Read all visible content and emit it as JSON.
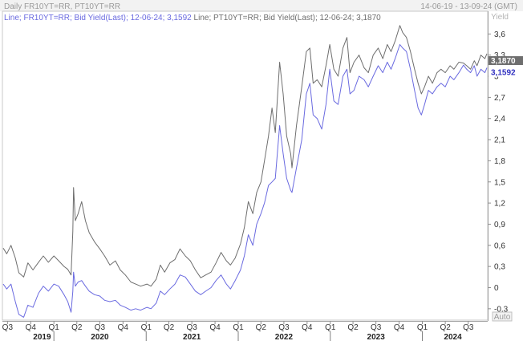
{
  "header": {
    "title": "Daily FR10YT=RR, PT10YT=RR",
    "date_range": "14-06-19 - 13-09-24 (GMT)"
  },
  "legend": {
    "entries": [
      {
        "text": "Line; FR10YT=RR; Bid Yield(Last); 12-06-24; 3,1592",
        "color": "#6a6ae0"
      },
      {
        "text": "Line; PT10YT=RR; Bid Yield(Last); 12-06-24; 3,1870",
        "color": "#6e6e6e"
      }
    ]
  },
  "y_axis_unit": "Yield",
  "auto_button": "Auto",
  "last_value_labels": [
    {
      "text": "3,1870",
      "value": 3.187,
      "background": "#6e6e6e",
      "color": "#ffffff"
    },
    {
      "text": "3,1592",
      "value": 3.1592,
      "background": "#ffffff",
      "color": "#3030c0"
    }
  ],
  "chart_data": {
    "type": "line",
    "x_range": [
      "2019-06-14",
      "2024-09-13"
    ],
    "ylim": [
      -0.45,
      3.9
    ],
    "y_ticks": [
      {
        "v": 3.6,
        "t": "3,6"
      },
      {
        "v": 3.3,
        "t": "3,3"
      },
      {
        "v": 3.0,
        "t": "3"
      },
      {
        "v": 2.7,
        "t": "2,7"
      },
      {
        "v": 2.4,
        "t": "2,4"
      },
      {
        "v": 2.1,
        "t": "2,1"
      },
      {
        "v": 1.8,
        "t": "1,8"
      },
      {
        "v": 1.5,
        "t": "1,5"
      },
      {
        "v": 1.2,
        "t": "1,2"
      },
      {
        "v": 0.9,
        "t": "0,9"
      },
      {
        "v": 0.6,
        "t": "0,6"
      },
      {
        "v": 0.3,
        "t": "0,3"
      },
      {
        "v": 0.0,
        "t": "0"
      },
      {
        "v": -0.3,
        "t": "-0,3"
      }
    ],
    "x_ticks": [
      {
        "d": "2019-07-01",
        "t": "Q3"
      },
      {
        "d": "2019-10-01",
        "t": "Q4"
      },
      {
        "d": "2020-01-01",
        "t": "Q1"
      },
      {
        "d": "2020-04-01",
        "t": "Q2"
      },
      {
        "d": "2020-07-01",
        "t": "Q3"
      },
      {
        "d": "2020-10-01",
        "t": "Q4"
      },
      {
        "d": "2021-01-01",
        "t": "Q1"
      },
      {
        "d": "2021-04-01",
        "t": "Q2"
      },
      {
        "d": "2021-07-01",
        "t": "Q3"
      },
      {
        "d": "2021-10-01",
        "t": "Q4"
      },
      {
        "d": "2022-01-01",
        "t": "Q1"
      },
      {
        "d": "2022-04-01",
        "t": "Q2"
      },
      {
        "d": "2022-07-01",
        "t": "Q3"
      },
      {
        "d": "2022-10-01",
        "t": "Q4"
      },
      {
        "d": "2023-01-01",
        "t": "Q1"
      },
      {
        "d": "2023-04-01",
        "t": "Q2"
      },
      {
        "d": "2023-07-01",
        "t": "Q3"
      },
      {
        "d": "2023-10-01",
        "t": "Q4"
      },
      {
        "d": "2024-01-01",
        "t": "Q1"
      },
      {
        "d": "2024-04-01",
        "t": "Q2"
      },
      {
        "d": "2024-07-01",
        "t": "Q3"
      }
    ],
    "year_labels": [
      {
        "d": "2019-11-15",
        "t": "2019"
      },
      {
        "d": "2020-07-01",
        "t": "2020"
      },
      {
        "d": "2021-07-01",
        "t": "2021"
      },
      {
        "d": "2022-07-01",
        "t": "2022"
      },
      {
        "d": "2023-07-01",
        "t": "2023"
      },
      {
        "d": "2024-05-01",
        "t": "2024"
      }
    ],
    "year_separators": [
      "2020-01-01",
      "2021-01-01",
      "2022-01-01",
      "2023-01-01",
      "2024-01-01"
    ],
    "series": [
      {
        "name": "PT10YT=RR",
        "color": "#6e6e6e",
        "points": [
          [
            "2019-06-14",
            0.56
          ],
          [
            "2019-06-28",
            0.48
          ],
          [
            "2019-07-15",
            0.6
          ],
          [
            "2019-08-01",
            0.42
          ],
          [
            "2019-08-15",
            0.21
          ],
          [
            "2019-09-03",
            0.15
          ],
          [
            "2019-09-20",
            0.35
          ],
          [
            "2019-10-10",
            0.25
          ],
          [
            "2019-11-01",
            0.36
          ],
          [
            "2019-11-20",
            0.45
          ],
          [
            "2019-12-10",
            0.36
          ],
          [
            "2020-01-01",
            0.45
          ],
          [
            "2020-01-20",
            0.38
          ],
          [
            "2020-02-10",
            0.3
          ],
          [
            "2020-02-25",
            0.26
          ],
          [
            "2020-03-09",
            0.18
          ],
          [
            "2020-03-16",
            0.8
          ],
          [
            "2020-03-19",
            1.42
          ],
          [
            "2020-03-26",
            0.95
          ],
          [
            "2020-04-06",
            1.05
          ],
          [
            "2020-04-20",
            1.22
          ],
          [
            "2020-05-05",
            0.95
          ],
          [
            "2020-05-20",
            0.78
          ],
          [
            "2020-06-10",
            0.65
          ],
          [
            "2020-07-01",
            0.55
          ],
          [
            "2020-07-20",
            0.45
          ],
          [
            "2020-08-10",
            0.32
          ],
          [
            "2020-09-01",
            0.38
          ],
          [
            "2020-09-20",
            0.25
          ],
          [
            "2020-10-10",
            0.18
          ],
          [
            "2020-11-01",
            0.08
          ],
          [
            "2020-11-20",
            0.05
          ],
          [
            "2020-12-10",
            0.02
          ],
          [
            "2021-01-04",
            0.05
          ],
          [
            "2021-01-20",
            0.02
          ],
          [
            "2021-02-10",
            0.12
          ],
          [
            "2021-02-26",
            0.32
          ],
          [
            "2021-03-15",
            0.22
          ],
          [
            "2021-04-05",
            0.35
          ],
          [
            "2021-04-25",
            0.4
          ],
          [
            "2021-05-15",
            0.55
          ],
          [
            "2021-06-05",
            0.45
          ],
          [
            "2021-06-25",
            0.38
          ],
          [
            "2021-07-15",
            0.25
          ],
          [
            "2021-08-05",
            0.14
          ],
          [
            "2021-08-25",
            0.18
          ],
          [
            "2021-09-15",
            0.22
          ],
          [
            "2021-10-05",
            0.35
          ],
          [
            "2021-10-25",
            0.5
          ],
          [
            "2021-11-15",
            0.38
          ],
          [
            "2021-12-01",
            0.32
          ],
          [
            "2021-12-20",
            0.42
          ],
          [
            "2022-01-10",
            0.62
          ],
          [
            "2022-01-25",
            0.85
          ],
          [
            "2022-02-10",
            1.22
          ],
          [
            "2022-02-28",
            1.05
          ],
          [
            "2022-03-15",
            1.35
          ],
          [
            "2022-04-01",
            1.5
          ],
          [
            "2022-04-15",
            1.8
          ],
          [
            "2022-05-01",
            2.15
          ],
          [
            "2022-05-15",
            2.55
          ],
          [
            "2022-05-28",
            2.2
          ],
          [
            "2022-06-14",
            3.2
          ],
          [
            "2022-06-28",
            2.75
          ],
          [
            "2022-07-12",
            2.15
          ],
          [
            "2022-07-28",
            1.9
          ],
          [
            "2022-08-02",
            1.7
          ],
          [
            "2022-08-20",
            2.3
          ],
          [
            "2022-09-10",
            2.85
          ],
          [
            "2022-09-28",
            3.35
          ],
          [
            "2022-10-12",
            3.4
          ],
          [
            "2022-10-25",
            2.9
          ],
          [
            "2022-11-10",
            2.95
          ],
          [
            "2022-11-28",
            2.85
          ],
          [
            "2022-12-15",
            3.15
          ],
          [
            "2022-12-30",
            3.45
          ],
          [
            "2023-01-15",
            3.1
          ],
          [
            "2023-02-01",
            3.0
          ],
          [
            "2023-02-20",
            3.4
          ],
          [
            "2023-03-08",
            3.55
          ],
          [
            "2023-03-20",
            3.05
          ],
          [
            "2023-04-05",
            3.2
          ],
          [
            "2023-04-25",
            3.3
          ],
          [
            "2023-05-15",
            3.12
          ],
          [
            "2023-06-01",
            3.05
          ],
          [
            "2023-06-20",
            3.3
          ],
          [
            "2023-07-10",
            3.4
          ],
          [
            "2023-07-28",
            3.25
          ],
          [
            "2023-08-15",
            3.45
          ],
          [
            "2023-08-30",
            3.35
          ],
          [
            "2023-09-15",
            3.5
          ],
          [
            "2023-10-04",
            3.72
          ],
          [
            "2023-10-15",
            3.62
          ],
          [
            "2023-10-30",
            3.55
          ],
          [
            "2023-11-15",
            3.35
          ],
          [
            "2023-12-01",
            3.1
          ],
          [
            "2023-12-15",
            2.9
          ],
          [
            "2023-12-28",
            2.75
          ],
          [
            "2024-01-10",
            2.85
          ],
          [
            "2024-01-25",
            3.0
          ],
          [
            "2024-02-10",
            2.9
          ],
          [
            "2024-02-28",
            3.05
          ],
          [
            "2024-03-15",
            3.1
          ],
          [
            "2024-04-01",
            3.05
          ],
          [
            "2024-04-20",
            3.15
          ],
          [
            "2024-05-05",
            3.1
          ],
          [
            "2024-05-25",
            3.2
          ],
          [
            "2024-06-12",
            3.187
          ],
          [
            "2024-06-25",
            3.15
          ],
          [
            "2024-07-10",
            3.1
          ],
          [
            "2024-07-25",
            3.22
          ],
          [
            "2024-08-05",
            3.15
          ],
          [
            "2024-08-20",
            3.3
          ],
          [
            "2024-09-05",
            3.25
          ],
          [
            "2024-09-13",
            3.32
          ]
        ]
      },
      {
        "name": "FR10YT=RR",
        "color": "#6a6ae0",
        "points": [
          [
            "2019-06-14",
            0.05
          ],
          [
            "2019-06-28",
            -0.02
          ],
          [
            "2019-07-15",
            0.05
          ],
          [
            "2019-08-01",
            -0.2
          ],
          [
            "2019-08-15",
            -0.38
          ],
          [
            "2019-09-03",
            -0.42
          ],
          [
            "2019-09-20",
            -0.25
          ],
          [
            "2019-10-10",
            -0.28
          ],
          [
            "2019-11-01",
            -0.08
          ],
          [
            "2019-11-20",
            0.02
          ],
          [
            "2019-12-10",
            -0.05
          ],
          [
            "2020-01-01",
            0.05
          ],
          [
            "2020-01-20",
            0.02
          ],
          [
            "2020-02-10",
            -0.1
          ],
          [
            "2020-02-25",
            -0.2
          ],
          [
            "2020-03-09",
            -0.35
          ],
          [
            "2020-03-16",
            -0.05
          ],
          [
            "2020-03-19",
            0.22
          ],
          [
            "2020-03-26",
            0.02
          ],
          [
            "2020-04-06",
            0.08
          ],
          [
            "2020-04-20",
            0.1
          ],
          [
            "2020-05-05",
            0.02
          ],
          [
            "2020-05-20",
            -0.05
          ],
          [
            "2020-06-10",
            -0.1
          ],
          [
            "2020-07-01",
            -0.12
          ],
          [
            "2020-07-20",
            -0.18
          ],
          [
            "2020-08-10",
            -0.2
          ],
          [
            "2020-09-01",
            -0.18
          ],
          [
            "2020-09-20",
            -0.25
          ],
          [
            "2020-10-10",
            -0.28
          ],
          [
            "2020-11-01",
            -0.32
          ],
          [
            "2020-11-20",
            -0.3
          ],
          [
            "2020-12-10",
            -0.32
          ],
          [
            "2021-01-04",
            -0.28
          ],
          [
            "2021-01-20",
            -0.3
          ],
          [
            "2021-02-10",
            -0.22
          ],
          [
            "2021-02-26",
            -0.05
          ],
          [
            "2021-03-15",
            -0.1
          ],
          [
            "2021-04-05",
            -0.02
          ],
          [
            "2021-04-25",
            0.05
          ],
          [
            "2021-05-15",
            0.18
          ],
          [
            "2021-06-05",
            0.15
          ],
          [
            "2021-06-25",
            0.05
          ],
          [
            "2021-07-15",
            -0.05
          ],
          [
            "2021-08-05",
            -0.1
          ],
          [
            "2021-08-25",
            -0.05
          ],
          [
            "2021-09-15",
            0.0
          ],
          [
            "2021-10-05",
            0.1
          ],
          [
            "2021-10-25",
            0.18
          ],
          [
            "2021-11-15",
            0.05
          ],
          [
            "2021-12-01",
            -0.02
          ],
          [
            "2021-12-20",
            0.1
          ],
          [
            "2022-01-10",
            0.25
          ],
          [
            "2022-01-25",
            0.45
          ],
          [
            "2022-02-10",
            0.75
          ],
          [
            "2022-02-28",
            0.6
          ],
          [
            "2022-03-15",
            0.9
          ],
          [
            "2022-04-01",
            1.05
          ],
          [
            "2022-04-15",
            1.2
          ],
          [
            "2022-05-01",
            1.45
          ],
          [
            "2022-05-15",
            1.5
          ],
          [
            "2022-05-28",
            1.55
          ],
          [
            "2022-06-14",
            2.3
          ],
          [
            "2022-06-28",
            1.9
          ],
          [
            "2022-07-12",
            1.55
          ],
          [
            "2022-07-28",
            1.38
          ],
          [
            "2022-08-02",
            1.35
          ],
          [
            "2022-08-20",
            1.7
          ],
          [
            "2022-09-10",
            2.1
          ],
          [
            "2022-09-28",
            2.75
          ],
          [
            "2022-10-12",
            2.9
          ],
          [
            "2022-10-25",
            2.45
          ],
          [
            "2022-11-10",
            2.4
          ],
          [
            "2022-11-28",
            2.25
          ],
          [
            "2022-12-15",
            2.6
          ],
          [
            "2022-12-30",
            3.1
          ],
          [
            "2023-01-15",
            2.65
          ],
          [
            "2023-02-01",
            2.6
          ],
          [
            "2023-02-20",
            3.0
          ],
          [
            "2023-03-08",
            3.1
          ],
          [
            "2023-03-20",
            2.75
          ],
          [
            "2023-04-05",
            2.8
          ],
          [
            "2023-04-25",
            3.0
          ],
          [
            "2023-05-15",
            2.95
          ],
          [
            "2023-06-01",
            2.85
          ],
          [
            "2023-06-20",
            3.0
          ],
          [
            "2023-07-10",
            3.15
          ],
          [
            "2023-07-28",
            3.05
          ],
          [
            "2023-08-15",
            3.2
          ],
          [
            "2023-08-30",
            3.1
          ],
          [
            "2023-09-15",
            3.25
          ],
          [
            "2023-10-04",
            3.45
          ],
          [
            "2023-10-15",
            3.4
          ],
          [
            "2023-10-30",
            3.35
          ],
          [
            "2023-11-15",
            3.1
          ],
          [
            "2023-12-01",
            2.8
          ],
          [
            "2023-12-15",
            2.55
          ],
          [
            "2023-12-28",
            2.45
          ],
          [
            "2024-01-10",
            2.6
          ],
          [
            "2024-01-25",
            2.8
          ],
          [
            "2024-02-10",
            2.75
          ],
          [
            "2024-02-28",
            2.85
          ],
          [
            "2024-03-15",
            2.9
          ],
          [
            "2024-04-01",
            2.85
          ],
          [
            "2024-04-20",
            3.0
          ],
          [
            "2024-05-05",
            2.95
          ],
          [
            "2024-05-25",
            3.05
          ],
          [
            "2024-06-12",
            3.1592
          ],
          [
            "2024-06-25",
            3.1
          ],
          [
            "2024-07-10",
            3.05
          ],
          [
            "2024-07-25",
            3.15
          ],
          [
            "2024-08-05",
            3.0
          ],
          [
            "2024-08-20",
            3.1
          ],
          [
            "2024-09-05",
            3.05
          ],
          [
            "2024-09-13",
            3.12
          ]
        ]
      }
    ]
  }
}
